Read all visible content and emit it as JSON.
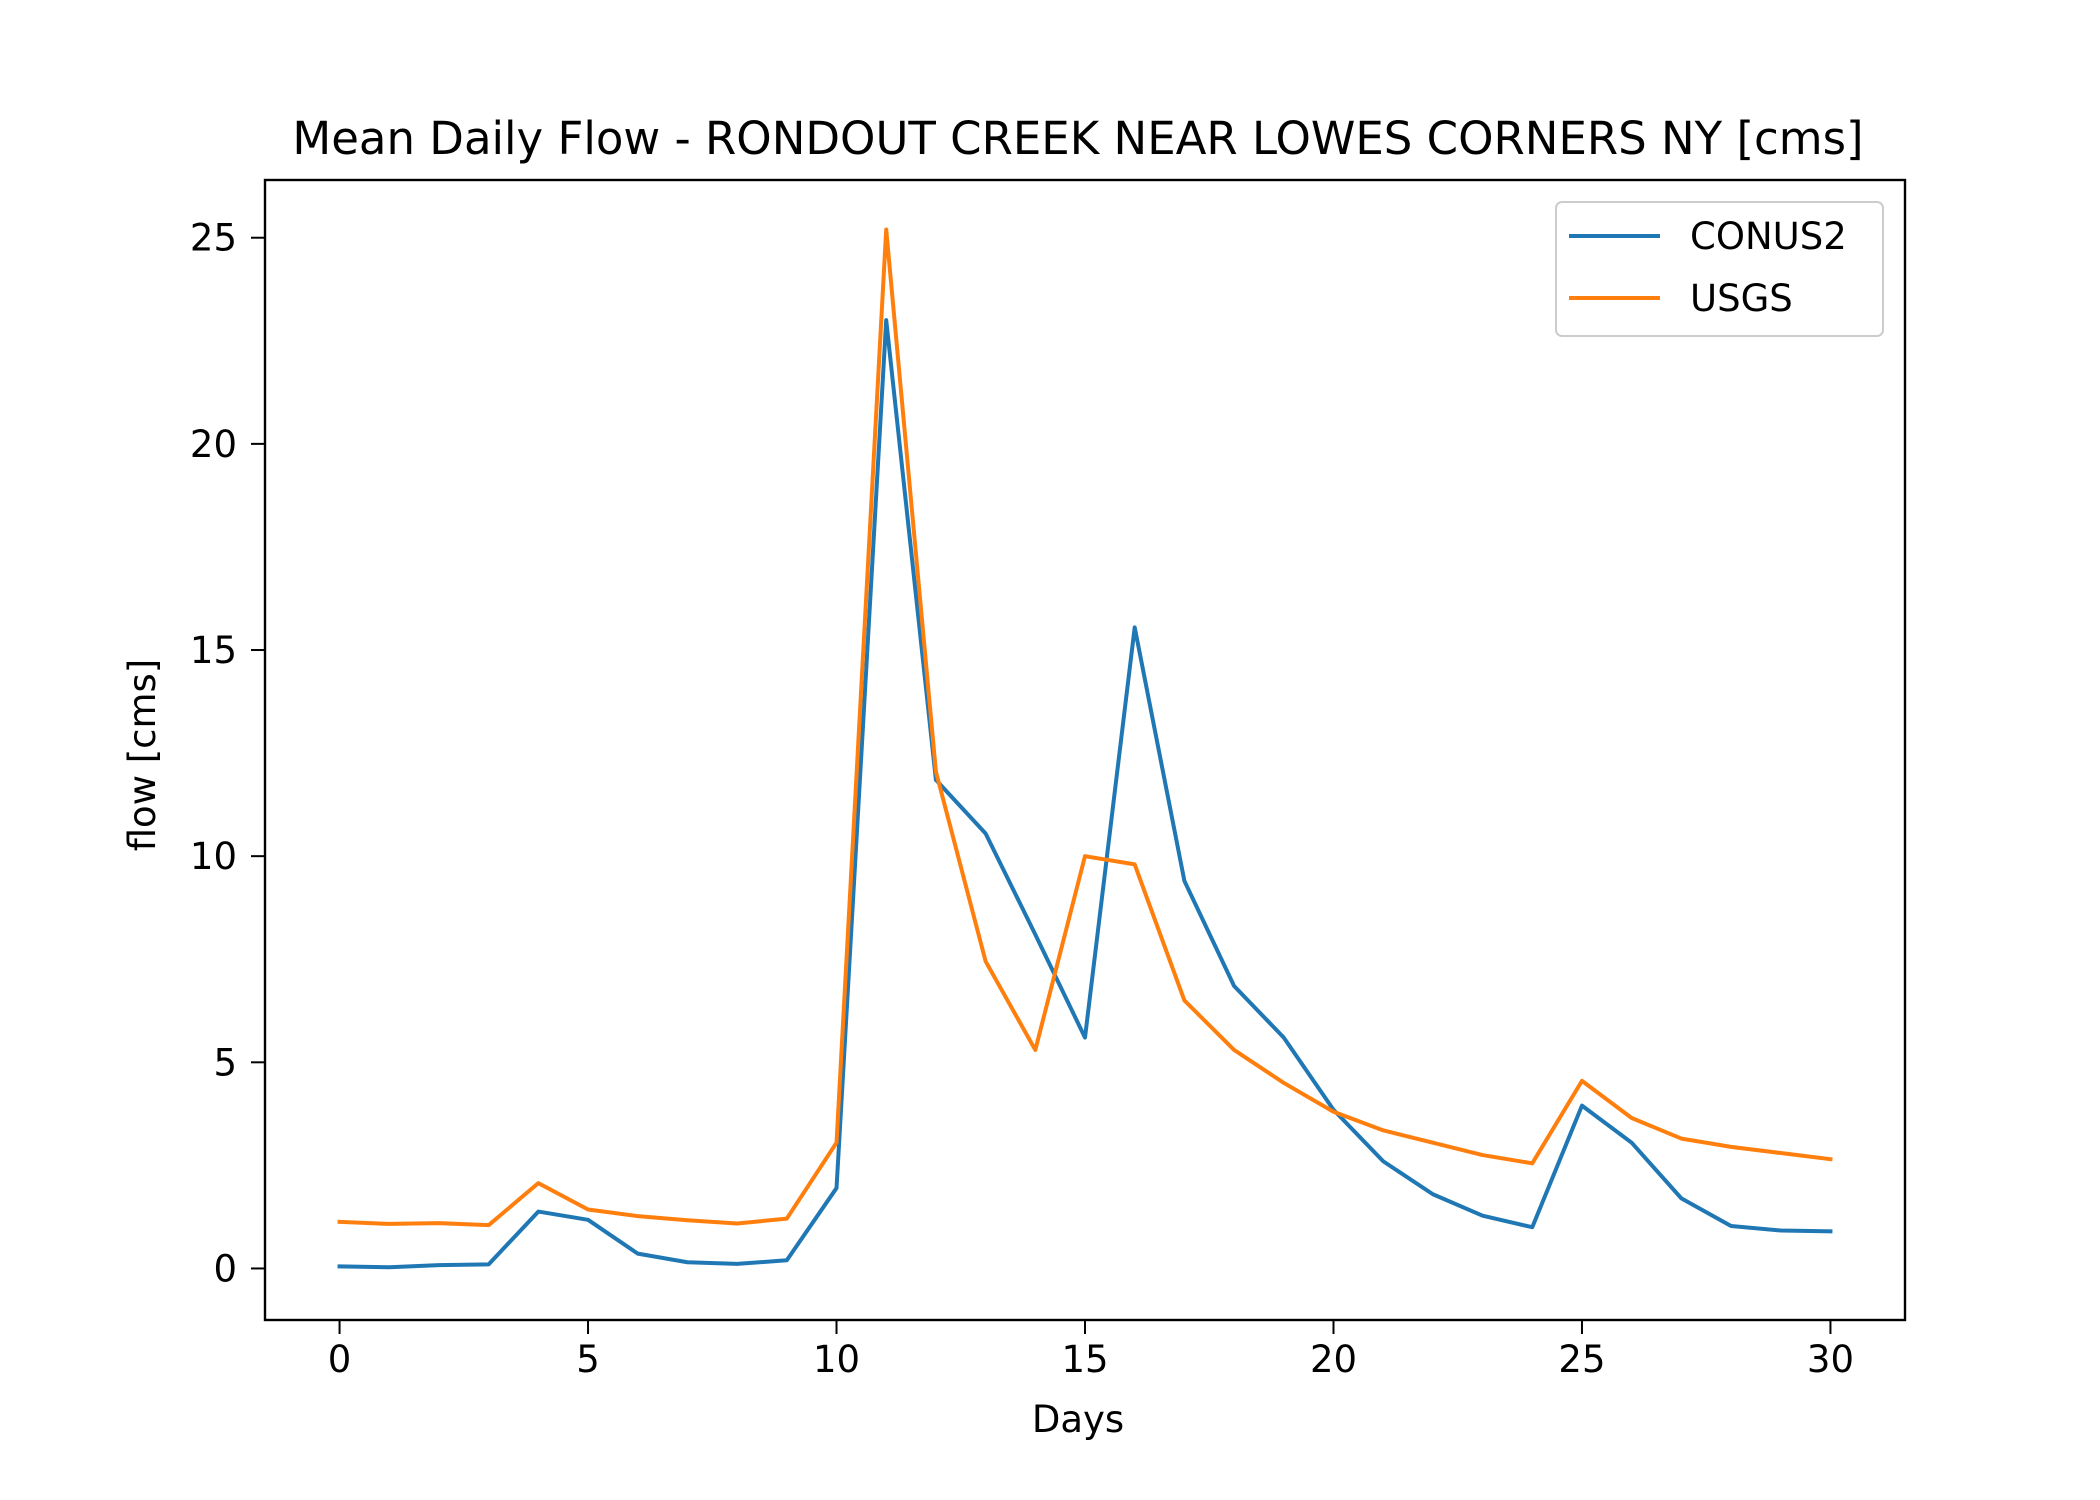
{
  "chart_data": {
    "type": "line",
    "title": "Mean Daily Flow - RONDOUT CREEK NEAR LOWES CORNERS NY [cms]",
    "xlabel": "Days",
    "ylabel": "flow [cms]",
    "xlim": [
      -1.5,
      31.5
    ],
    "ylim": [
      -1.25,
      26.4
    ],
    "xticks": [
      0,
      5,
      10,
      15,
      20,
      25,
      30
    ],
    "yticks": [
      0,
      5,
      10,
      15,
      20,
      25
    ],
    "grid": false,
    "legend_position": "top-right",
    "x": [
      0,
      1,
      2,
      3,
      4,
      5,
      6,
      7,
      8,
      9,
      10,
      11,
      12,
      13,
      14,
      15,
      16,
      17,
      18,
      19,
      20,
      21,
      22,
      23,
      24,
      25,
      26,
      27,
      28,
      29,
      30
    ],
    "series": [
      {
        "name": "CONUS2",
        "color": "#1f77b4",
        "values": [
          0.05,
          0.03,
          0.08,
          0.1,
          1.38,
          1.18,
          0.36,
          0.15,
          0.11,
          0.2,
          1.95,
          23.0,
          11.85,
          10.55,
          8.1,
          5.6,
          15.55,
          9.4,
          6.85,
          5.6,
          3.85,
          2.6,
          1.8,
          1.28,
          1.0,
          3.95,
          3.05,
          1.7,
          1.03,
          0.92,
          0.9
        ]
      },
      {
        "name": "USGS",
        "color": "#ff7f0e",
        "values": [
          1.13,
          1.08,
          1.1,
          1.05,
          2.07,
          1.43,
          1.27,
          1.17,
          1.09,
          1.21,
          3.05,
          25.2,
          12.05,
          7.45,
          5.3,
          10.0,
          9.8,
          6.5,
          5.3,
          4.5,
          3.8,
          3.35,
          3.05,
          2.75,
          2.55,
          4.55,
          3.65,
          3.15,
          2.95,
          2.8,
          2.65
        ]
      }
    ]
  }
}
